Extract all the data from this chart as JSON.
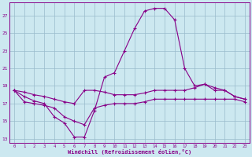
{
  "background_color": "#cce8f0",
  "grid_color": "#99bbcc",
  "line_color": "#880088",
  "xlabel": "Windchill (Refroidissement éolien,°C)",
  "hours": [
    0,
    1,
    2,
    3,
    4,
    5,
    6,
    7,
    8,
    9,
    10,
    11,
    12,
    13,
    14,
    15,
    16,
    17,
    18,
    19,
    20,
    21,
    22,
    23
  ],
  "line_spike": [
    18.5,
    17.8,
    17.3,
    17.0,
    15.5,
    14.8,
    13.2,
    13.2,
    16.2,
    20.0,
    20.5,
    23.0,
    25.5,
    27.5,
    27.8,
    27.8,
    26.5,
    21.0,
    19.0,
    19.2,
    18.8,
    18.5,
    17.8,
    17.5
  ],
  "line_upper": [
    18.5,
    18.3,
    18.0,
    17.8,
    17.5,
    17.2,
    17.0,
    18.5,
    18.5,
    18.3,
    18.0,
    18.0,
    18.0,
    18.2,
    18.5,
    18.5,
    18.5,
    18.5,
    18.8,
    19.2,
    18.5,
    18.5,
    17.8,
    17.5
  ],
  "line_lower": [
    18.5,
    17.2,
    17.0,
    16.8,
    16.5,
    15.5,
    15.0,
    14.6,
    16.5,
    16.8,
    17.0,
    17.0,
    17.0,
    17.2,
    17.5,
    17.5,
    17.5,
    17.5,
    17.5,
    17.5,
    17.5,
    17.5,
    17.5,
    17.2
  ],
  "ylim": [
    12.5,
    28.5
  ],
  "yticks": [
    13,
    15,
    17,
    19,
    21,
    23,
    25,
    27
  ],
  "xlim": [
    -0.5,
    23.5
  ],
  "figsize": [
    3.2,
    2.0
  ],
  "dpi": 100
}
